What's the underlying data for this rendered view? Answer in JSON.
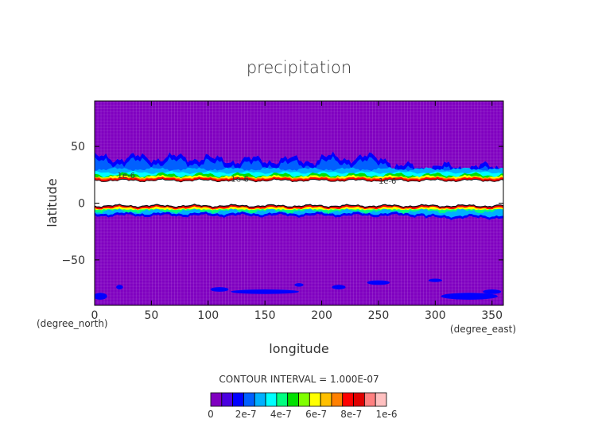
{
  "chart_data": {
    "type": "heatmap",
    "title": "precipitation",
    "xlabel": "longitude",
    "ylabel": "latitude",
    "x_unit": "(degree_east)",
    "y_unit": "(degree_north)",
    "xlim": [
      0,
      360
    ],
    "ylim": [
      -90,
      90
    ],
    "x_ticks": [
      "0",
      "50",
      "100",
      "150",
      "200",
      "250",
      "300",
      "350"
    ],
    "y_ticks": [
      "50",
      "0",
      "-50"
    ],
    "contour_interval_text": "CONTOUR INTERVAL = 1.000E-07",
    "colorbar": {
      "tick_labels": [
        "0",
        "2e-7",
        "4e-7",
        "6e-7",
        "8e-7",
        "1e-6"
      ],
      "colors": [
        "#8000c0",
        "#4a00e0",
        "#0000ff",
        "#0060ff",
        "#00b0ff",
        "#00ffff",
        "#00ff80",
        "#00e000",
        "#80ff00",
        "#ffff00",
        "#ffc000",
        "#ff8000",
        "#ff0000",
        "#e00000",
        "#ff8080",
        "#ffc0c0"
      ]
    },
    "contour_labels": [
      "1e-6",
      "1e-6",
      "1e-6"
    ],
    "grid": true,
    "background_color": "#8000c0"
  }
}
